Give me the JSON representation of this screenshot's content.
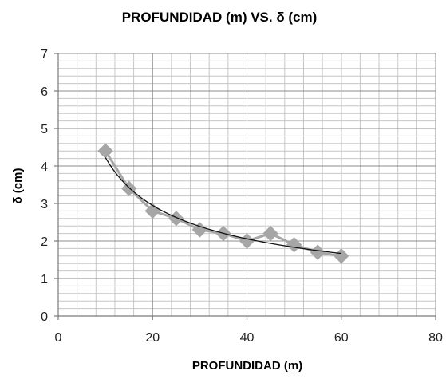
{
  "chart_data": {
    "type": "scatter",
    "title": "PROFUNDIDAD (m) VS. δ (cm)",
    "xlabel": "PROFUNDIDAD (m)",
    "ylabel": "δ (cm)",
    "xlim": [
      0,
      80
    ],
    "ylim": [
      0,
      7
    ],
    "x_ticks": [
      "0",
      "20",
      "40",
      "60",
      "80"
    ],
    "y_ticks": [
      "0",
      "1",
      "2",
      "3",
      "4",
      "5",
      "6",
      "7"
    ],
    "grid": true,
    "legend": "none",
    "series": [
      {
        "x": [
          10,
          15,
          20,
          25,
          30,
          35,
          40,
          45,
          50,
          55,
          60
        ],
        "y": [
          4.4,
          3.4,
          2.8,
          2.6,
          2.3,
          2.2,
          2.0,
          2.2,
          1.9,
          1.7,
          1.6
        ],
        "marker": "diamond",
        "color": "#a6a6a6"
      }
    ],
    "trendline": {
      "type": "power",
      "color": "#111111",
      "x_range": [
        10,
        60
      ]
    }
  }
}
